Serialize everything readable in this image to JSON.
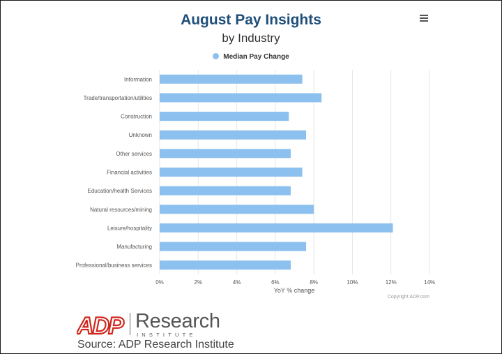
{
  "chart_data": {
    "type": "bar",
    "orientation": "horizontal",
    "title": "August Pay Insights",
    "subtitle": "by Industry",
    "categories": [
      "Information",
      "Trade/transportation/utilities",
      "Construction",
      "Unknown",
      "Other services",
      "Financial activities",
      "Education/health Services",
      "Natural resources/mining",
      "Leisure/hospitality",
      "Manufacturing",
      "Professional/business services"
    ],
    "series": [
      {
        "name": "Median Pay Change",
        "color": "#8cc0ee",
        "values": [
          7.4,
          8.4,
          6.7,
          7.6,
          6.8,
          7.4,
          6.8,
          8.0,
          12.1,
          7.6,
          6.8
        ]
      }
    ],
    "xlabel": "YoY % change",
    "ylabel": "",
    "xlim": [
      0,
      14
    ],
    "xticks": [
      "0%",
      "2%",
      "4%",
      "6%",
      "8%",
      "10%",
      "12%",
      "14%"
    ],
    "grid": true,
    "legend_position": "top-center",
    "credit": "Copyright ADP.com"
  },
  "menu_icon": "hamburger-menu-icon",
  "branding": {
    "logo_text": "ADP",
    "logo_color": "#d0271d",
    "research": "Research",
    "institute": "INSTITUTE",
    "source": "Source: ADP Research Institute"
  }
}
